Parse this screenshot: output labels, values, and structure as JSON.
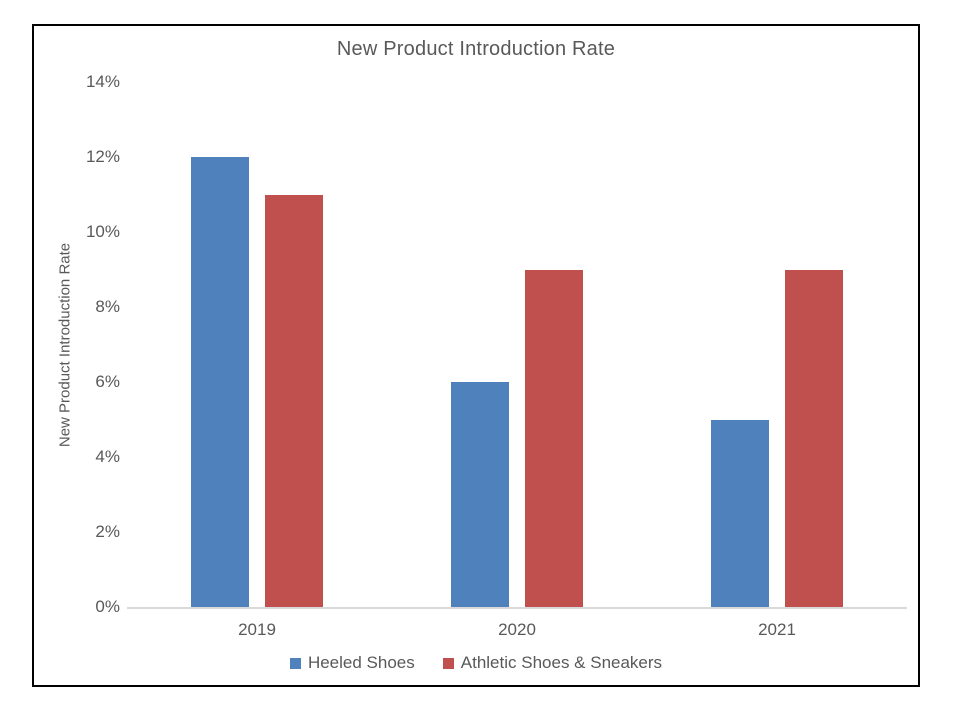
{
  "chart_data": {
    "type": "bar",
    "title": "New Product Introduction Rate",
    "xlabel": "",
    "ylabel": "New Product Introduction Rate",
    "categories": [
      "2019",
      "2020",
      "2021"
    ],
    "series": [
      {
        "name": "Heeled Shoes",
        "color": "#4F81BD",
        "values": [
          12,
          6,
          5
        ]
      },
      {
        "name": "Athletic Shoes & Sneakers",
        "color": "#C0504D",
        "values": [
          11,
          9,
          9
        ]
      }
    ],
    "ylim": [
      0,
      14
    ],
    "ytick_step": 2,
    "ytick_suffix": "%",
    "grid": false,
    "legend_position": "bottom",
    "colors": {
      "text": "#595959",
      "axis_line": "#D9D9D9",
      "border": "#000000",
      "background": "#FFFFFF"
    }
  }
}
